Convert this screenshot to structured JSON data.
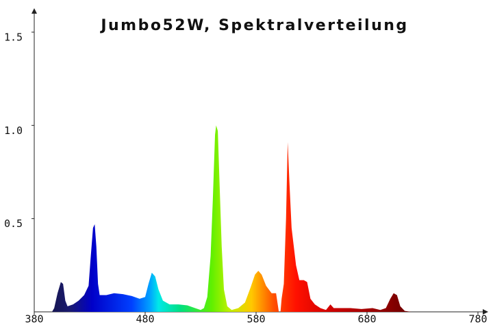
{
  "chart_data": {
    "type": "area",
    "title": "Jumbo52W, Spektralverteilung",
    "x": [
      380,
      390,
      396,
      398,
      401,
      404,
      406,
      408,
      410,
      415,
      420,
      425,
      429,
      431,
      433,
      434.5,
      436,
      437.5,
      439,
      445,
      452,
      460,
      468,
      475,
      480,
      483,
      486,
      489,
      492,
      496,
      502,
      510,
      518,
      525,
      530,
      533,
      536,
      539,
      541,
      543,
      544,
      545.5,
      547,
      549,
      551,
      554,
      558,
      564,
      570,
      575,
      579,
      582,
      585,
      589,
      594,
      598,
      600.5,
      602,
      603,
      605,
      607,
      608.5,
      610,
      612,
      614,
      616,
      619,
      623,
      626,
      629,
      633,
      638,
      643,
      647,
      650,
      656,
      665,
      675,
      685,
      692,
      697,
      701,
      704,
      707,
      710,
      714,
      720,
      780
    ],
    "values": [
      0,
      0,
      0,
      0.02,
      0.1,
      0.16,
      0.15,
      0.06,
      0.03,
      0.04,
      0.06,
      0.09,
      0.14,
      0.3,
      0.45,
      0.47,
      0.35,
      0.15,
      0.09,
      0.09,
      0.1,
      0.095,
      0.085,
      0.07,
      0.08,
      0.15,
      0.21,
      0.19,
      0.12,
      0.06,
      0.04,
      0.04,
      0.035,
      0.02,
      0.01,
      0.02,
      0.08,
      0.3,
      0.6,
      0.95,
      1.0,
      0.97,
      0.7,
      0.35,
      0.12,
      0.03,
      0.01,
      0.02,
      0.05,
      0.13,
      0.2,
      0.22,
      0.2,
      0.14,
      0.1,
      0.1,
      0,
      0,
      0.07,
      0.15,
      0.5,
      0.91,
      0.7,
      0.45,
      0.35,
      0.25,
      0.17,
      0.17,
      0.16,
      0.07,
      0.04,
      0.02,
      0.01,
      0.04,
      0.02,
      0.02,
      0.02,
      0.015,
      0.02,
      0.01,
      0.02,
      0.07,
      0.1,
      0.09,
      0.03,
      0.005,
      0,
      0
    ],
    "xlim": [
      380,
      780
    ],
    "ylim": [
      0,
      1.5
    ],
    "xticks": [
      380,
      480,
      580,
      680,
      780
    ],
    "yticks": [
      0.5,
      {
        "value": 1,
        "label": "1.0"
      },
      1.5
    ]
  }
}
